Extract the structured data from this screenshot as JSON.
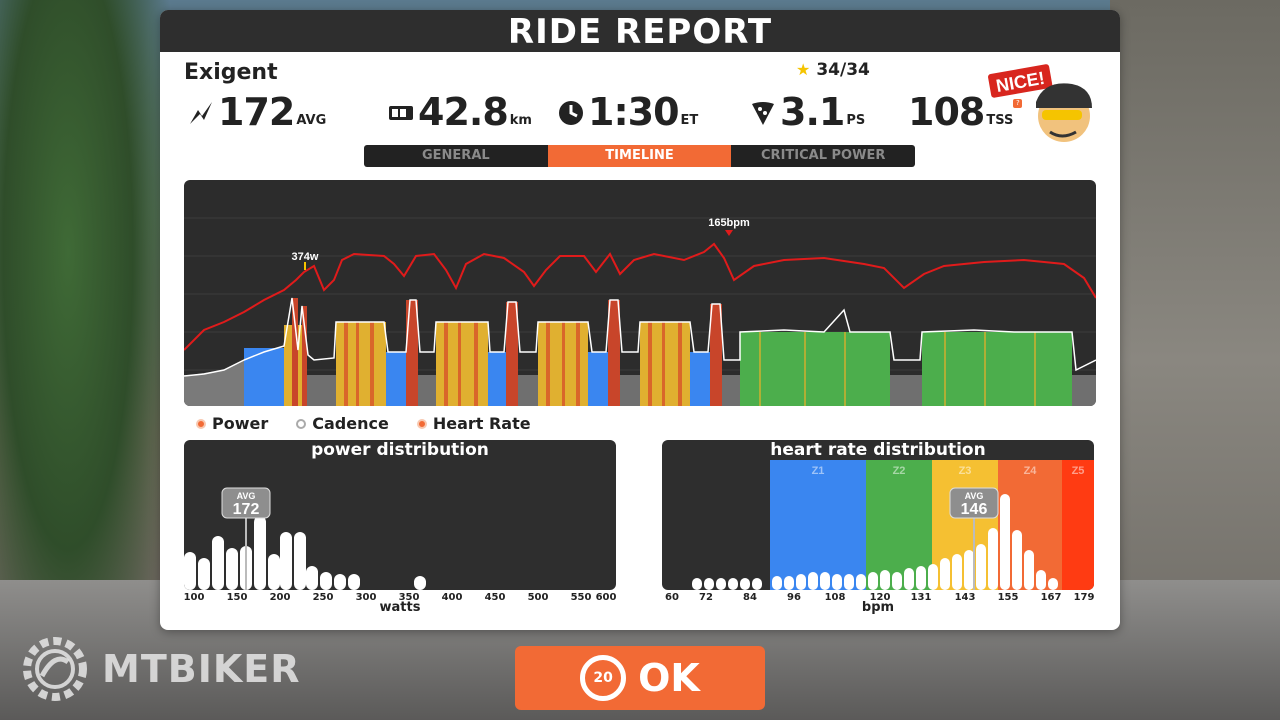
{
  "colors": {
    "accent": "#f26a35",
    "dark": "#2e2e2e",
    "z1": "#3a86f0",
    "z2": "#4cae4c",
    "z3": "#f5c032",
    "z4": "#f26a35",
    "z5": "#ff3b12",
    "hr_line": "#e01b1b"
  },
  "header": {
    "title": "RIDE REPORT"
  },
  "rider": {
    "name": "Exigent"
  },
  "stars": {
    "value": "34/34",
    "icon": "star-icon"
  },
  "stats": {
    "power": {
      "value": "172",
      "unit": "AVG",
      "icon": "power-bolt-icon"
    },
    "distance": {
      "value": "42.8",
      "unit": "km",
      "icon": "odometer-icon"
    },
    "time": {
      "value": "1:30",
      "unit": "ET",
      "icon": "clock-icon"
    },
    "drops": {
      "value": "3.1",
      "unit": "PS",
      "icon": "pizza-slice-icon"
    },
    "tss": {
      "value": "108",
      "unit": "TSS",
      "icon": "info-icon"
    }
  },
  "mascot": {
    "badge": "NICE!"
  },
  "tabs": [
    {
      "label": "GENERAL",
      "active": false
    },
    {
      "label": "TIMELINE",
      "active": true
    },
    {
      "label": "CRITICAL POWER",
      "active": false
    }
  ],
  "timeline": {
    "power_peak_label": "374w",
    "hr_peak_label": "165bpm"
  },
  "legend": [
    {
      "label": "Power",
      "enabled": true
    },
    {
      "label": "Cadence",
      "enabled": false
    },
    {
      "label": "Heart Rate",
      "enabled": true
    }
  ],
  "power_distribution": {
    "title": "power distribution",
    "xlabel": "watts",
    "ticks": [
      "100",
      "150",
      "200",
      "250",
      "300",
      "350",
      "400",
      "450",
      "500",
      "550",
      "600"
    ],
    "avg_label": "AVG",
    "avg_value": "172"
  },
  "hr_distribution": {
    "title": "heart rate distribution",
    "xlabel": "bpm",
    "ticks": [
      "60",
      "72",
      "84",
      "96",
      "108",
      "120",
      "131",
      "143",
      "155",
      "167",
      "179"
    ],
    "zones": [
      "Z1",
      "Z2",
      "Z3",
      "Z4",
      "Z5"
    ],
    "avg_label": "AVG",
    "avg_value": "146"
  },
  "ok_button": {
    "label": "OK",
    "countdown": "20"
  },
  "watermark": {
    "text": "MTBIKER"
  }
}
